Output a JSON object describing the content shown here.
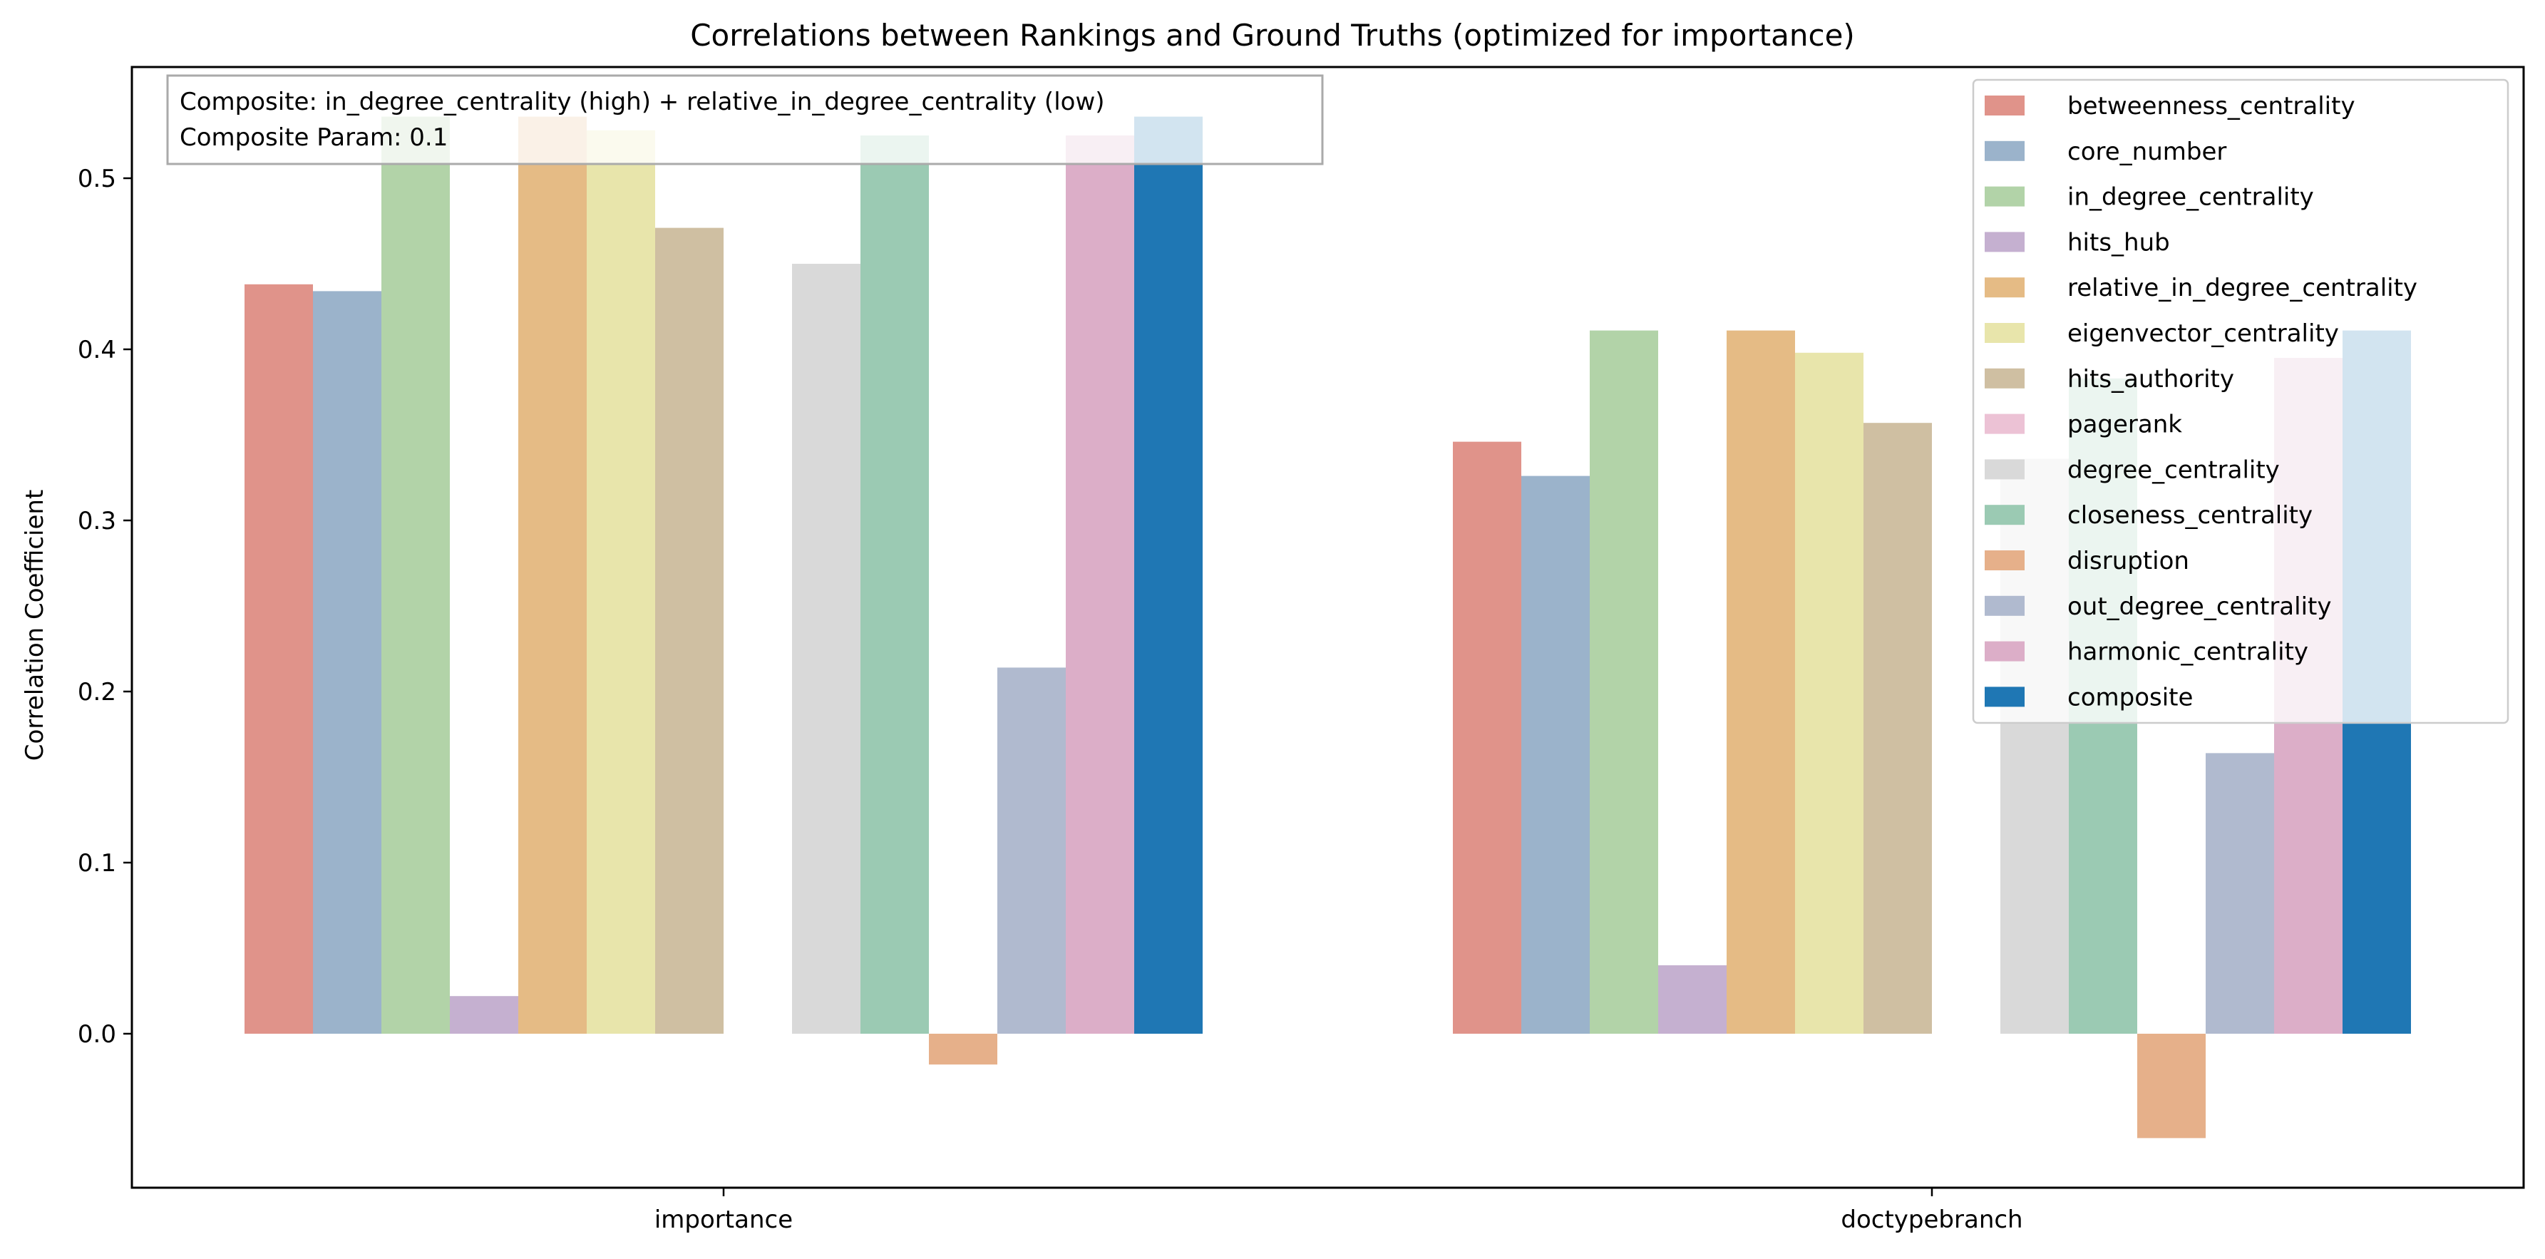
{
  "chart_data": {
    "type": "bar",
    "title": "Correlations between Rankings and Ground Truths (optimized for importance)",
    "xlabel": "",
    "ylabel": "Correlation Coefficient",
    "categories": [
      "importance",
      "doctypebranch"
    ],
    "ylim": [
      -0.09,
      0.565
    ],
    "yticks": [
      "0.0",
      "0.1",
      "0.2",
      "0.3",
      "0.4",
      "0.5"
    ],
    "grid": false,
    "legend_position": "top-right",
    "annotation": {
      "line1": "Composite: in_degree_centrality (high) + relative_in_degree_centrality (low)",
      "line2": "Composite Param: 0.1"
    },
    "series": [
      {
        "name": "betweenness_centrality",
        "color": "#e0938a",
        "values": [
          0.438,
          0.346
        ]
      },
      {
        "name": "core_number",
        "color": "#9bb3cb",
        "values": [
          0.434,
          0.326
        ]
      },
      {
        "name": "in_degree_centrality",
        "color": "#b2d3a8",
        "values": [
          0.536,
          0.411
        ]
      },
      {
        "name": "hits_hub",
        "color": "#c5b0d0",
        "values": [
          0.022,
          0.04
        ]
      },
      {
        "name": "relative_in_degree_centrality",
        "color": "#e5bb85",
        "values": [
          0.536,
          0.411
        ]
      },
      {
        "name": "eigenvector_centrality",
        "color": "#e8e5ab",
        "values": [
          0.528,
          0.398
        ]
      },
      {
        "name": "hits_authority",
        "color": "#cfbfa2",
        "values": [
          0.471,
          0.357
        ]
      },
      {
        "name": "pagerank",
        "color": "#ecc2d5",
        "values": [
          0.0,
          0.0
        ]
      },
      {
        "name": "degree_centrality",
        "color": "#d9d9d9",
        "values": [
          0.45,
          0.336
        ]
      },
      {
        "name": "closeness_centrality",
        "color": "#9bcab3",
        "values": [
          0.525,
          0.383
        ]
      },
      {
        "name": "disruption",
        "color": "#e6b08a",
        "values": [
          -0.018,
          -0.061
        ]
      },
      {
        "name": "out_degree_centrality",
        "color": "#b0bacf",
        "values": [
          0.214,
          0.164
        ]
      },
      {
        "name": "harmonic_centrality",
        "color": "#dcaec8",
        "values": [
          0.525,
          0.395
        ]
      },
      {
        "name": "composite",
        "color": "#1f77b4",
        "values": [
          0.536,
          0.411
        ]
      }
    ]
  }
}
